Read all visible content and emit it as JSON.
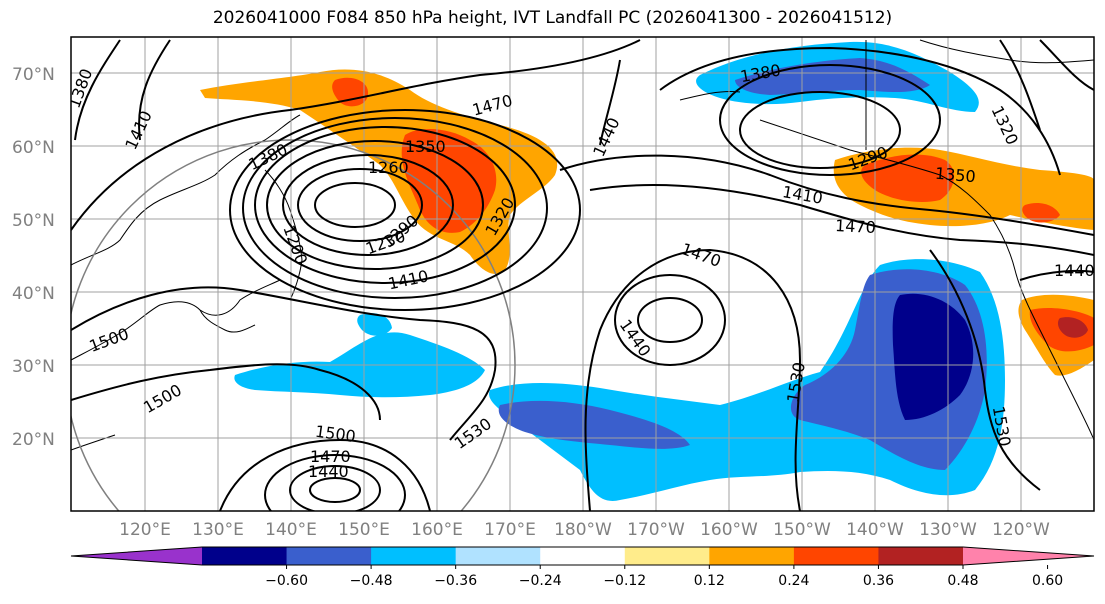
{
  "title": "2026041000 F084 850 hPa height, IVT Landfall PC (2026041300 - 2026041512)",
  "lat_labels": [
    "70°N",
    "60°N",
    "50°N",
    "40°N",
    "30°N",
    "20°N"
  ],
  "lon_labels": [
    "120°E",
    "130°E",
    "140°E",
    "150°E",
    "160°E",
    "170°E",
    "180°W",
    "170°W",
    "160°W",
    "150°W",
    "140°W",
    "130°W",
    "120°W"
  ],
  "colorbar": {
    "colors": [
      "#9932cc",
      "#00008b",
      "#3a5fcd",
      "#00bfff",
      "#b0e2ff",
      "#ffffff",
      "#ffec8b",
      "#ffa500",
      "#ff4500",
      "#b22222",
      "#ff82ab"
    ],
    "tick_labels": [
      "−0.60",
      "−0.48",
      "−0.36",
      "−0.24",
      "−0.12",
      "0.12",
      "0.24",
      "0.36",
      "0.48",
      "0.60"
    ]
  },
  "contour_labels": [
    "1380",
    "1410",
    "1380",
    "1350",
    "1260",
    "1290",
    "1320",
    "1230",
    "1410",
    "1200",
    "1470",
    "1500",
    "1500",
    "1440",
    "1380",
    "1320",
    "1290",
    "1350",
    "1410",
    "1470",
    "1470",
    "1440",
    "1530",
    "1530",
    "1530",
    "1440",
    "1500",
    "1470",
    "1440"
  ],
  "colors": {
    "orange": "#ffa500",
    "red_orange": "#ff4500",
    "dark_blue": "#00008b",
    "royal_blue": "#3a5fcd",
    "sky_blue": "#00bfff",
    "grid": "#a0a0a0"
  }
}
